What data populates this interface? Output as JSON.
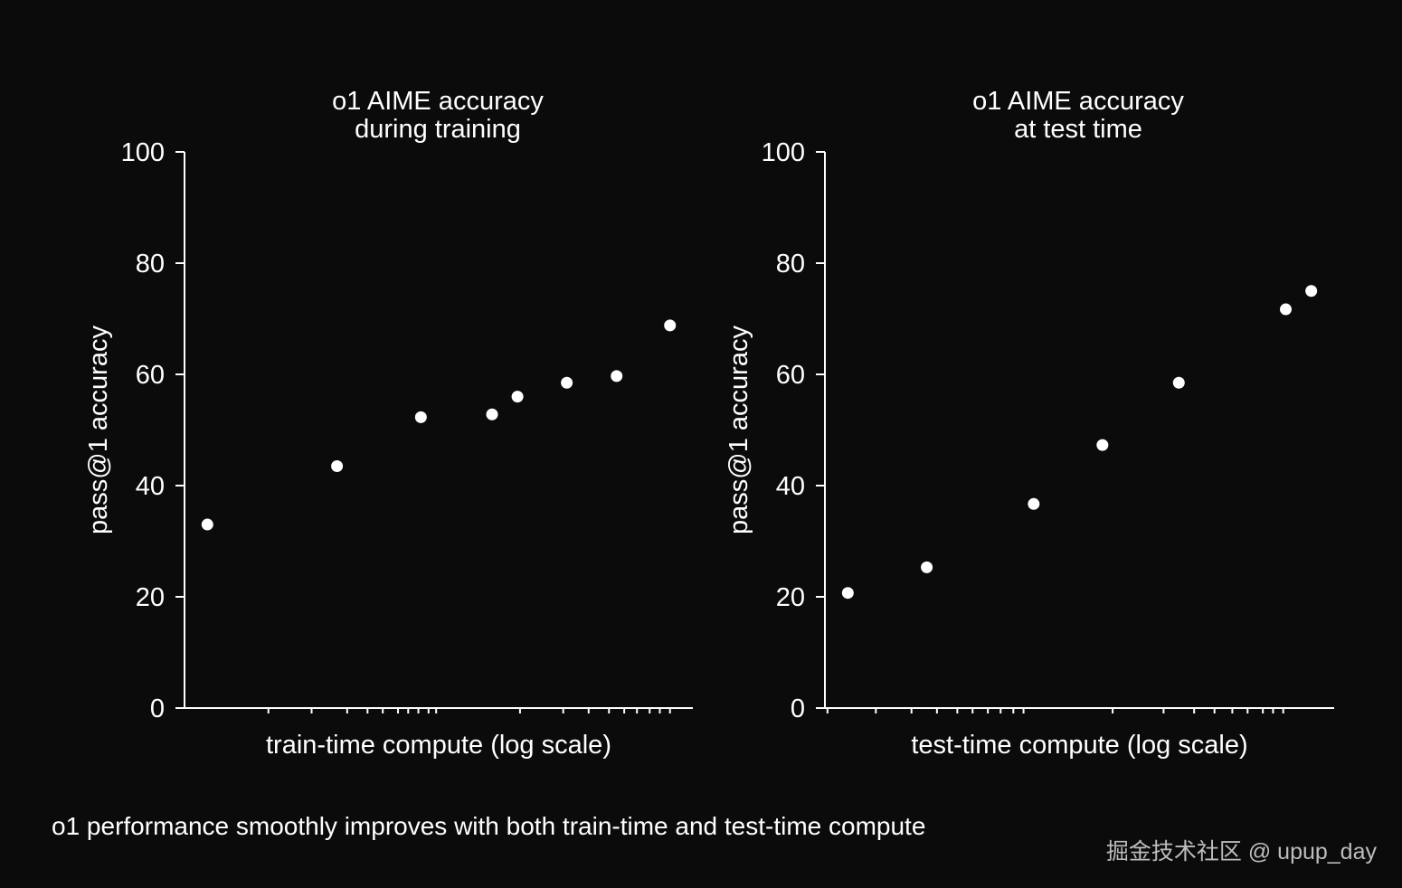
{
  "chart_data": [
    {
      "type": "scatter",
      "title_lines": [
        "o1 AIME accuracy",
        "during training"
      ],
      "xlabel": "train-time compute (log scale)",
      "ylabel": "pass@1 accuracy",
      "ylim": [
        0,
        100
      ],
      "yticks": [
        0,
        20,
        40,
        60,
        80,
        100
      ],
      "xlim": [
        0,
        1
      ],
      "x_scale": "log",
      "minor_x_ticks": [
        0.165,
        0.25,
        0.32,
        0.36,
        0.39,
        0.42,
        0.44,
        0.46,
        0.48,
        0.495,
        0.66,
        0.745,
        0.795,
        0.835,
        0.865,
        0.89,
        0.915,
        0.935,
        0.955
      ],
      "points": [
        {
          "x": 0.045,
          "y": 33.0
        },
        {
          "x": 0.3,
          "y": 43.5
        },
        {
          "x": 0.465,
          "y": 52.3
        },
        {
          "x": 0.605,
          "y": 52.8
        },
        {
          "x": 0.655,
          "y": 56.0
        },
        {
          "x": 0.752,
          "y": 58.5
        },
        {
          "x": 0.85,
          "y": 59.7
        },
        {
          "x": 0.955,
          "y": 68.8
        }
      ]
    },
    {
      "type": "scatter",
      "title_lines": [
        "o1 AIME accuracy",
        "at test time"
      ],
      "xlabel": "test-time compute (log scale)",
      "ylabel": "pass@1 accuracy",
      "ylim": [
        0,
        100
      ],
      "yticks": [
        0,
        20,
        40,
        60,
        80,
        100
      ],
      "xlim": [
        0,
        1
      ],
      "x_scale": "log",
      "minor_x_ticks": [
        0.005,
        0.1,
        0.17,
        0.22,
        0.26,
        0.29,
        0.32,
        0.345,
        0.37,
        0.39,
        0.565,
        0.665,
        0.725,
        0.765,
        0.8,
        0.83,
        0.86,
        0.88,
        0.9
      ],
      "points": [
        {
          "x": 0.045,
          "y": 20.7
        },
        {
          "x": 0.2,
          "y": 25.3
        },
        {
          "x": 0.41,
          "y": 36.7
        },
        {
          "x": 0.545,
          "y": 47.3
        },
        {
          "x": 0.695,
          "y": 58.5
        },
        {
          "x": 0.905,
          "y": 71.7
        },
        {
          "x": 0.955,
          "y": 75.0
        }
      ]
    }
  ],
  "caption": "o1 performance smoothly improves with both train-time and test-time compute",
  "watermark": "掘金技术社区 @ upup_day",
  "colors": {
    "background": "#0b0b0b",
    "foreground": "#ffffff",
    "watermark": "#bdbdbd"
  }
}
